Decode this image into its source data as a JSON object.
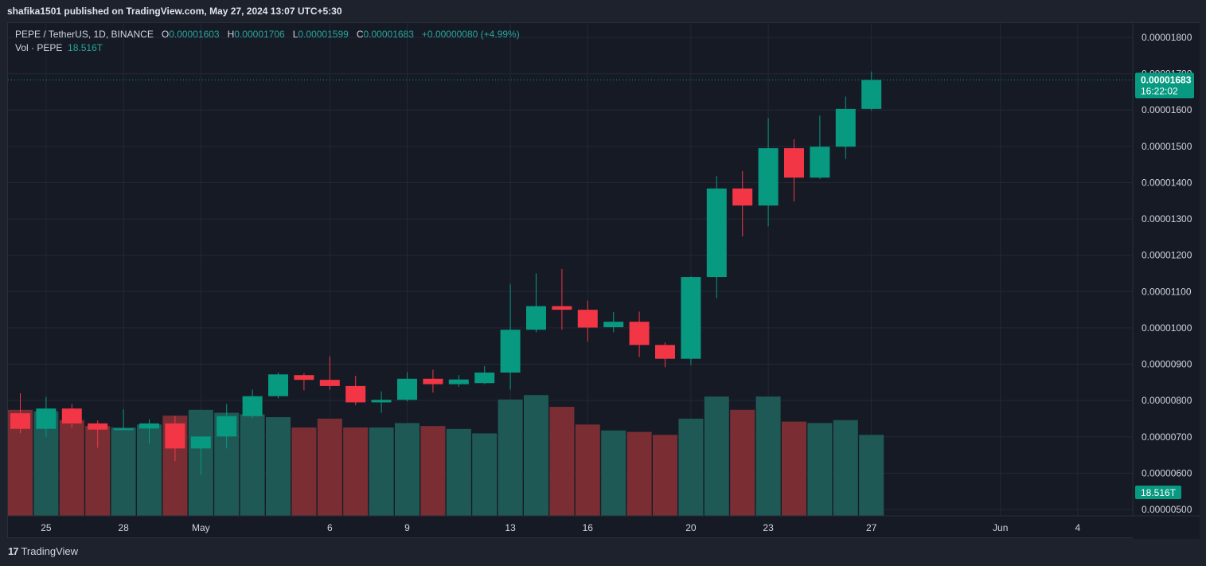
{
  "header": {
    "published_text": "shafika1501 published on TradingView.com, May 27, 2024 13:07 UTC+5:30"
  },
  "legend": {
    "symbol": "PEPE / TetherUS, 1D, BINANCE",
    "o_label": "O",
    "o_value": "0.00001603",
    "h_label": "H",
    "h_value": "0.00001706",
    "l_label": "L",
    "l_value": "0.00001599",
    "c_label": "C",
    "c_value": "0.00001683",
    "change": "+0.00000080 (+4.99%)",
    "vol_label": "Vol · PEPE",
    "vol_value": "18.516T"
  },
  "footer": {
    "logo_text": "TradingView"
  },
  "colors": {
    "up": "#089981",
    "down": "#f23645",
    "vol_up": "#1e5956",
    "vol_down": "#7a2e33",
    "grid": "#242836",
    "badge": "#089981"
  },
  "chart_data": {
    "type": "candlestick",
    "price_ticks": [
      "0.00001800",
      "0.00001700",
      "0.00001600",
      "0.00001500",
      "0.00001400",
      "0.00001300",
      "0.00001200",
      "0.00001100",
      "0.00001000",
      "0.00000900",
      "0.00000800",
      "0.00000700",
      "0.00000600",
      "0.00000500"
    ],
    "price_range": [
      4.8e-06,
      1.82e-05
    ],
    "x_ticks": [
      {
        "label": "25",
        "index": 1
      },
      {
        "label": "28",
        "index": 4
      },
      {
        "label": "May",
        "index": 7
      },
      {
        "label": "6",
        "index": 12
      },
      {
        "label": "9",
        "index": 15
      },
      {
        "label": "13",
        "index": 19
      },
      {
        "label": "16",
        "index": 22
      },
      {
        "label": "20",
        "index": 26
      },
      {
        "label": "23",
        "index": 29
      },
      {
        "label": "27",
        "index": 33
      },
      {
        "label": "Jun",
        "index": 38
      },
      {
        "label": "4",
        "index": 41
      }
    ],
    "last_price_label": "0.00001683",
    "countdown_label": "16:22:02",
    "volume_label": "18.516T",
    "candles": [
      {
        "date": "Apr 24",
        "o": 7.65e-06,
        "h": 8.2e-06,
        "l": 7.1e-06,
        "c": 7.22e-06,
        "v": 0.72
      },
      {
        "date": "Apr 25",
        "o": 7.22e-06,
        "h": 8.1e-06,
        "l": 7e-06,
        "c": 7.78e-06,
        "v": 0.71
      },
      {
        "date": "Apr 26",
        "o": 7.78e-06,
        "h": 7.9e-06,
        "l": 7.25e-06,
        "c": 7.37e-06,
        "v": 0.65
      },
      {
        "date": "Apr 27",
        "o": 7.37e-06,
        "h": 7.45e-06,
        "l": 6.7e-06,
        "c": 7.2e-06,
        "v": 0.61
      },
      {
        "date": "Apr 28",
        "o": 7.2e-06,
        "h": 7.76e-06,
        "l": 7.2e-06,
        "c": 7.23e-06,
        "v": 0.6
      },
      {
        "date": "Apr 29",
        "o": 7.23e-06,
        "h": 7.48e-06,
        "l": 6.82e-06,
        "c": 7.37e-06,
        "v": 0.62
      },
      {
        "date": "Apr 30",
        "o": 7.37e-06,
        "h": 7.58e-06,
        "l": 6.33e-06,
        "c": 6.68e-06,
        "v": 0.68
      },
      {
        "date": "May 1",
        "o": 6.68e-06,
        "h": 7.02e-06,
        "l": 5.95e-06,
        "c": 7.01e-06,
        "v": 0.72
      },
      {
        "date": "May 2",
        "o": 7.01e-06,
        "h": 7.9e-06,
        "l": 6.68e-06,
        "c": 7.57e-06,
        "v": 0.7
      },
      {
        "date": "May 3",
        "o": 7.57e-06,
        "h": 8.3e-06,
        "l": 7.52e-06,
        "c": 8.12e-06,
        "v": 0.69
      },
      {
        "date": "May 4",
        "o": 8.12e-06,
        "h": 8.77e-06,
        "l": 8.06e-06,
        "c": 8.72e-06,
        "v": 0.67
      },
      {
        "date": "May 5",
        "o": 8.7e-06,
        "h": 8.75e-06,
        "l": 8.28e-06,
        "c": 8.57e-06,
        "v": 0.6
      },
      {
        "date": "May 6",
        "o": 8.57e-06,
        "h": 9.22e-06,
        "l": 8.3e-06,
        "c": 8.4e-06,
        "v": 0.66
      },
      {
        "date": "May 7",
        "o": 8.4e-06,
        "h": 8.68e-06,
        "l": 7.88e-06,
        "c": 7.95e-06,
        "v": 0.6
      },
      {
        "date": "May 8",
        "o": 7.95e-06,
        "h": 8.25e-06,
        "l": 7.66e-06,
        "c": 8.02e-06,
        "v": 0.6
      },
      {
        "date": "May 9",
        "o": 8.02e-06,
        "h": 8.78e-06,
        "l": 7.98e-06,
        "c": 8.6e-06,
        "v": 0.63
      },
      {
        "date": "May 10",
        "o": 8.6e-06,
        "h": 8.85e-06,
        "l": 8.22e-06,
        "c": 8.45e-06,
        "v": 0.61
      },
      {
        "date": "May 11",
        "o": 8.45e-06,
        "h": 8.7e-06,
        "l": 8.38e-06,
        "c": 8.58e-06,
        "v": 0.59
      },
      {
        "date": "May 12",
        "o": 8.48e-06,
        "h": 8.95e-06,
        "l": 8.45e-06,
        "c": 8.77e-06,
        "v": 0.56
      },
      {
        "date": "May 13",
        "o": 8.77e-06,
        "h": 1.12e-05,
        "l": 8.3e-06,
        "c": 9.95e-06,
        "v": 0.79
      },
      {
        "date": "May 14",
        "o": 9.95e-06,
        "h": 1.15e-05,
        "l": 9.88e-06,
        "c": 1.06e-05,
        "v": 0.82
      },
      {
        "date": "May 15",
        "o": 1.06e-05,
        "h": 1.162e-05,
        "l": 9.95e-06,
        "c": 1.05e-05,
        "v": 0.74
      },
      {
        "date": "May 16",
        "o": 1.05e-05,
        "h": 1.075e-05,
        "l": 9.62e-06,
        "c": 1.001e-05,
        "v": 0.62
      },
      {
        "date": "May 17",
        "o": 1.002e-05,
        "h": 1.044e-05,
        "l": 9.88e-06,
        "c": 1.017e-05,
        "v": 0.58
      },
      {
        "date": "May 18",
        "o": 1.017e-05,
        "h": 1.045e-05,
        "l": 9.2e-06,
        "c": 9.53e-06,
        "v": 0.57
      },
      {
        "date": "May 19",
        "o": 9.53e-06,
        "h": 9.6e-06,
        "l": 8.92e-06,
        "c": 9.15e-06,
        "v": 0.55
      },
      {
        "date": "May 20",
        "o": 9.15e-06,
        "h": 1.142e-05,
        "l": 8.98e-06,
        "c": 1.14e-05,
        "v": 0.66
      },
      {
        "date": "May 21",
        "o": 1.14e-05,
        "h": 1.418e-05,
        "l": 1.082e-05,
        "c": 1.384e-05,
        "v": 0.81
      },
      {
        "date": "May 22",
        "o": 1.384e-05,
        "h": 1.432e-05,
        "l": 1.252e-05,
        "c": 1.337e-05,
        "v": 0.72
      },
      {
        "date": "May 23",
        "o": 1.337e-05,
        "h": 1.578e-05,
        "l": 1.28e-05,
        "c": 1.495e-05,
        "v": 0.81
      },
      {
        "date": "May 24",
        "o": 1.495e-05,
        "h": 1.52e-05,
        "l": 1.348e-05,
        "c": 1.414e-05,
        "v": 0.64
      },
      {
        "date": "May 25",
        "o": 1.414e-05,
        "h": 1.585e-05,
        "l": 1.41e-05,
        "c": 1.499e-05,
        "v": 0.63
      },
      {
        "date": "May 26",
        "o": 1.499e-05,
        "h": 1.637e-05,
        "l": 1.465e-05,
        "c": 1.603e-05,
        "v": 0.65
      },
      {
        "date": "May 27",
        "o": 1.603e-05,
        "h": 1.706e-05,
        "l": 1.599e-05,
        "c": 1.683e-05,
        "v": 0.55
      }
    ]
  }
}
